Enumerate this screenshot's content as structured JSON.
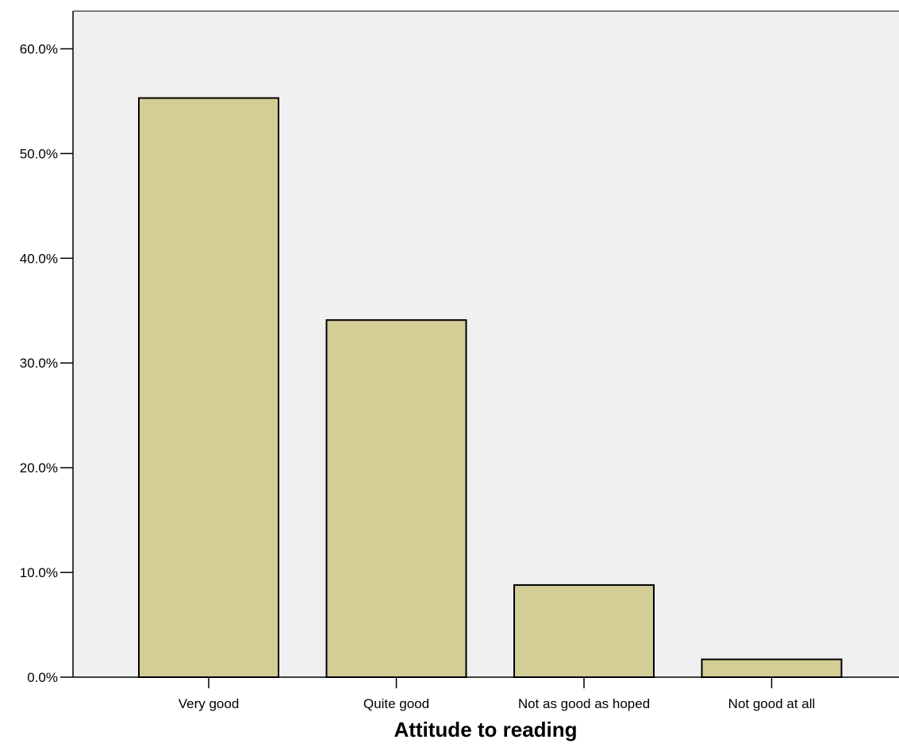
{
  "chart_data": {
    "type": "bar",
    "categories": [
      "Very good",
      "Quite good",
      "Not as good as hoped",
      "Not good at all"
    ],
    "values": [
      55.3,
      34.1,
      8.8,
      1.7
    ],
    "xlabel": "Attitude to reading",
    "ylabel": "",
    "ylim": [
      0,
      63.6
    ],
    "yticks": [
      0,
      10,
      20,
      30,
      40,
      50,
      60
    ],
    "ytick_labels": [
      "0.0%",
      "10.0%",
      "20.0%",
      "30.0%",
      "40.0%",
      "50.0%",
      "60.0%"
    ],
    "grid": false,
    "legend": "none",
    "colors": {
      "bar_fill": "#d3cd96",
      "bar_stroke": "#000000",
      "plot_background": "#f0f0f0"
    }
  }
}
